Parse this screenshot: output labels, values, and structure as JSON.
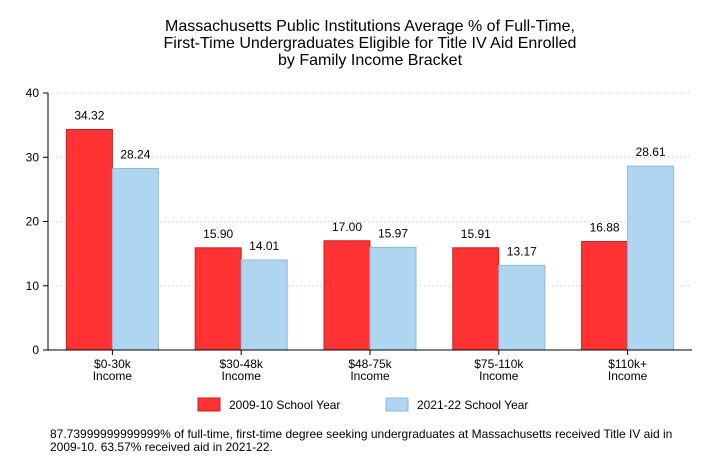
{
  "chart_data": {
    "type": "bar",
    "title": [
      "Massachusetts Public Institutions Average % of Full-Time,",
      "First-Time Undergraduates Eligible for Title IV Aid Enrolled",
      "by Family Income Bracket"
    ],
    "xlabel": "",
    "ylabel": "",
    "ylim": [
      0,
      40
    ],
    "yticks": [
      0,
      10,
      20,
      30,
      40
    ],
    "grid": "horizontal dotted",
    "legend_position": "bottom",
    "categories": [
      [
        "$0-30k",
        "Income"
      ],
      [
        "$30-48k",
        "Income"
      ],
      [
        "$48-75k",
        "Income"
      ],
      [
        "$75-110k",
        "Income"
      ],
      [
        "$110k+",
        "Income"
      ]
    ],
    "series": [
      {
        "name": "2009-10 School Year",
        "color": "#ff3333",
        "stroke": "#c81e1e",
        "values": [
          34.32,
          15.9,
          17.0,
          15.91,
          16.88
        ],
        "labels": [
          "34.32",
          "15.90",
          "17.00",
          "15.91",
          "16.88"
        ]
      },
      {
        "name": "2021-22 School Year",
        "color": "#aed6f1",
        "stroke": "#8fb8d4",
        "values": [
          28.24,
          14.01,
          15.97,
          13.17,
          28.61
        ],
        "labels": [
          "28.24",
          "14.01",
          "15.97",
          "13.17",
          "28.61"
        ]
      }
    ]
  },
  "note": "87.73999999999999% of full-time, first-time degree seeking undergraduates at Massachusetts received Title IV aid in 2009-10. 63.57% received aid in 2021-22."
}
